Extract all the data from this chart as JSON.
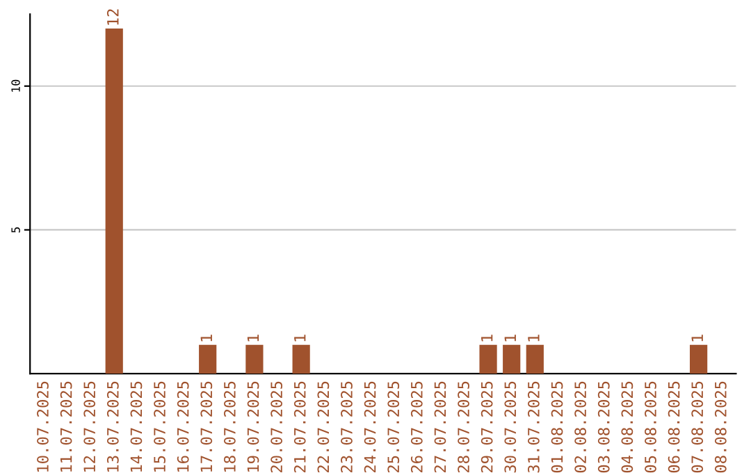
{
  "chart_data": {
    "type": "bar",
    "categories": [
      "10.07.2025",
      "11.07.2025",
      "12.07.2025",
      "13.07.2025",
      "14.07.2025",
      "15.07.2025",
      "16.07.2025",
      "17.07.2025",
      "18.07.2025",
      "19.07.2025",
      "20.07.2025",
      "21.07.2025",
      "22.07.2025",
      "23.07.2025",
      "24.07.2025",
      "25.07.2025",
      "26.07.2025",
      "27.07.2025",
      "28.07.2025",
      "29.07.2025",
      "30.07.2025",
      "31.07.2025",
      "01.08.2025",
      "02.08.2025",
      "03.08.2025",
      "04.08.2025",
      "05.08.2025",
      "06.08.2025",
      "07.08.2025",
      "08.08.2025"
    ],
    "values": [
      0,
      0,
      0,
      12,
      0,
      0,
      0,
      1,
      0,
      1,
      0,
      1,
      0,
      0,
      0,
      0,
      0,
      0,
      0,
      1,
      1,
      1,
      0,
      0,
      0,
      0,
      0,
      0,
      1,
      0
    ],
    "value_labels": [
      null,
      null,
      null,
      "12",
      null,
      null,
      null,
      "1",
      null,
      "1",
      null,
      "1",
      null,
      null,
      null,
      null,
      null,
      null,
      null,
      "1",
      "1",
      "1",
      null,
      null,
      null,
      null,
      null,
      null,
      "1",
      null
    ],
    "color": "#a0522d",
    "ylim": [
      0,
      12.5
    ],
    "yticks": [
      5,
      10
    ],
    "grid": "y"
  }
}
